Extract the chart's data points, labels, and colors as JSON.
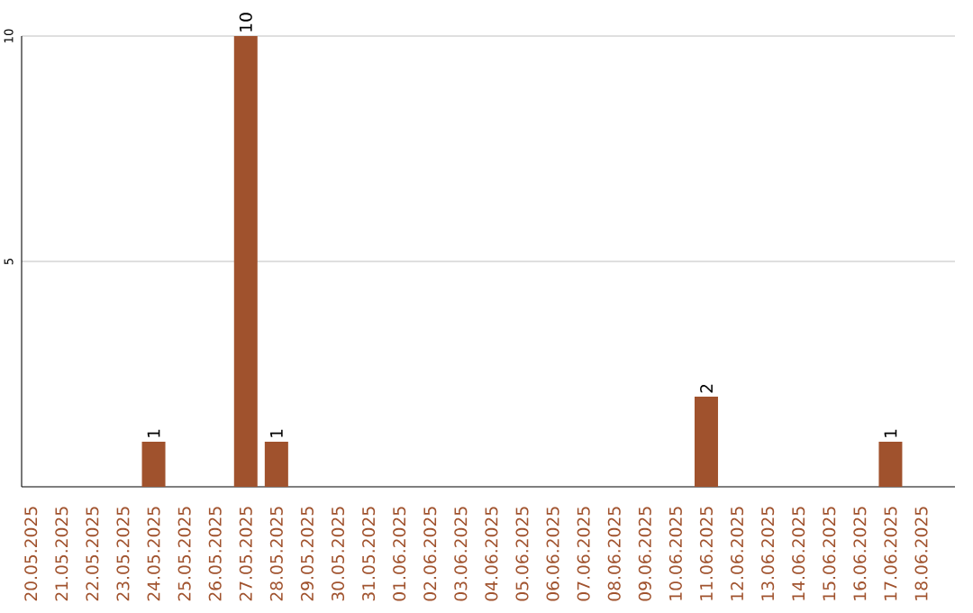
{
  "chart_data": {
    "type": "bar",
    "categories": [
      "20.05.2025",
      "21.05.2025",
      "22.05.2025",
      "23.05.2025",
      "24.05.2025",
      "25.05.2025",
      "26.05.2025",
      "27.05.2025",
      "28.05.2025",
      "29.05.2025",
      "30.05.2025",
      "31.05.2025",
      "01.06.2025",
      "02.06.2025",
      "03.06.2025",
      "04.06.2025",
      "05.06.2025",
      "06.06.2025",
      "07.06.2025",
      "08.06.2025",
      "09.06.2025",
      "10.06.2025",
      "11.06.2025",
      "12.06.2025",
      "13.06.2025",
      "14.06.2025",
      "15.06.2025",
      "16.06.2025",
      "17.06.2025",
      "18.06.2025"
    ],
    "values": [
      0,
      0,
      0,
      0,
      1,
      0,
      0,
      10,
      1,
      0,
      0,
      0,
      0,
      0,
      0,
      0,
      0,
      0,
      0,
      0,
      0,
      0,
      2,
      0,
      0,
      0,
      0,
      0,
      1,
      0
    ],
    "value_labels": [
      null,
      null,
      null,
      null,
      "1",
      null,
      null,
      "10",
      "1",
      null,
      null,
      null,
      null,
      null,
      null,
      null,
      null,
      null,
      null,
      null,
      null,
      null,
      "2",
      null,
      null,
      null,
      null,
      null,
      "1",
      null
    ],
    "color": "#a0522d",
    "ylim": [
      0,
      10
    ],
    "yticks": [
      5,
      10
    ],
    "grid": "y"
  }
}
